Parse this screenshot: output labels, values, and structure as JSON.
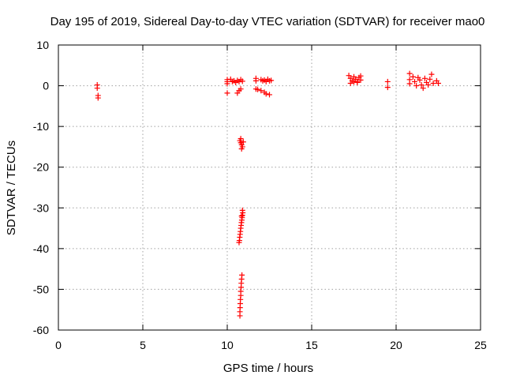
{
  "chart_data": {
    "type": "scatter",
    "title": "Day 195 of 2019, Sidereal Day-to-day VTEC variation (SDTVAR) for receiver mao0",
    "xlabel": "GPS time / hours",
    "ylabel": "SDTVAR / TECUs",
    "xlim": [
      0,
      25
    ],
    "ylim": [
      -60,
      10
    ],
    "xticks": [
      "0",
      "5",
      "10",
      "15",
      "20",
      "25"
    ],
    "yticks": [
      "10",
      "0",
      "-10",
      "-20",
      "-30",
      "-40",
      "-50",
      "-60"
    ],
    "grid": true,
    "marker": "plus",
    "color": "#ff0000",
    "series": [
      {
        "name": "SDTVAR",
        "points": [
          [
            2.3,
            0.2
          ],
          [
            2.3,
            -0.6
          ],
          [
            2.35,
            -2.4
          ],
          [
            2.35,
            -3.0
          ],
          [
            10.0,
            1.5
          ],
          [
            10.0,
            1.0
          ],
          [
            10.0,
            0.5
          ],
          [
            10.0,
            -1.8
          ],
          [
            10.2,
            1.6
          ],
          [
            10.3,
            1.0
          ],
          [
            10.4,
            1.2
          ],
          [
            10.5,
            0.8
          ],
          [
            10.6,
            1.3
          ],
          [
            10.7,
            1.0
          ],
          [
            10.8,
            1.5
          ],
          [
            10.9,
            1.1
          ],
          [
            10.6,
            -1.8
          ],
          [
            10.7,
            -1.2
          ],
          [
            10.8,
            -0.8
          ],
          [
            10.75,
            -13.5
          ],
          [
            10.8,
            -14.0
          ],
          [
            10.85,
            -14.5
          ],
          [
            10.9,
            -15.0
          ],
          [
            10.8,
            -13.0
          ],
          [
            10.85,
            -15.5
          ],
          [
            10.95,
            -13.8
          ],
          [
            10.7,
            -38.5
          ],
          [
            10.72,
            -38.0
          ],
          [
            10.74,
            -37.2
          ],
          [
            10.76,
            -36.5
          ],
          [
            10.78,
            -35.8
          ],
          [
            10.8,
            -35.0
          ],
          [
            10.82,
            -34.3
          ],
          [
            10.84,
            -33.6
          ],
          [
            10.86,
            -33.0
          ],
          [
            10.88,
            -32.4
          ],
          [
            10.9,
            -31.8
          ],
          [
            10.92,
            -31.2
          ],
          [
            10.9,
            -30.6
          ],
          [
            10.85,
            -32.0
          ],
          [
            10.75,
            -56.5
          ],
          [
            10.75,
            -55.5
          ],
          [
            10.76,
            -54.5
          ],
          [
            10.77,
            -53.5
          ],
          [
            10.78,
            -52.5
          ],
          [
            10.8,
            -51.5
          ],
          [
            10.8,
            -50.5
          ],
          [
            10.82,
            -49.5
          ],
          [
            10.83,
            -48.5
          ],
          [
            10.85,
            -47.5
          ],
          [
            10.87,
            -46.5
          ],
          [
            11.7,
            1.8
          ],
          [
            11.7,
            1.2
          ],
          [
            11.7,
            -0.8
          ],
          [
            11.8,
            -0.9
          ],
          [
            12.0,
            1.5
          ],
          [
            12.1,
            1.2
          ],
          [
            12.2,
            1.4
          ],
          [
            12.3,
            1.0
          ],
          [
            12.4,
            1.6
          ],
          [
            12.5,
            1.2
          ],
          [
            12.6,
            1.3
          ],
          [
            12.0,
            -1.2
          ],
          [
            12.2,
            -1.6
          ],
          [
            12.3,
            -2.0
          ],
          [
            12.5,
            -2.2
          ],
          [
            17.2,
            2.5
          ],
          [
            17.3,
            1.8
          ],
          [
            17.4,
            1.2
          ],
          [
            17.5,
            2.2
          ],
          [
            17.6,
            1.6
          ],
          [
            17.7,
            0.8
          ],
          [
            17.8,
            2.0
          ],
          [
            17.9,
            1.4
          ],
          [
            17.3,
            0.6
          ],
          [
            17.5,
            0.9
          ],
          [
            17.7,
            1.0
          ],
          [
            17.9,
            2.4
          ],
          [
            19.5,
            1.0
          ],
          [
            19.5,
            -0.4
          ],
          [
            20.8,
            3.0
          ],
          [
            20.8,
            1.5
          ],
          [
            20.8,
            0.5
          ],
          [
            21.0,
            2.2
          ],
          [
            21.1,
            1.0
          ],
          [
            21.2,
            0.0
          ],
          [
            21.3,
            2.0
          ],
          [
            21.4,
            1.4
          ],
          [
            21.5,
            0.2
          ],
          [
            21.6,
            -0.6
          ],
          [
            21.7,
            1.8
          ],
          [
            21.8,
            0.8
          ],
          [
            21.9,
            0.2
          ],
          [
            22.0,
            1.6
          ],
          [
            22.1,
            2.8
          ],
          [
            22.2,
            0.6
          ],
          [
            22.4,
            1.2
          ],
          [
            22.5,
            0.6
          ]
        ]
      }
    ]
  }
}
